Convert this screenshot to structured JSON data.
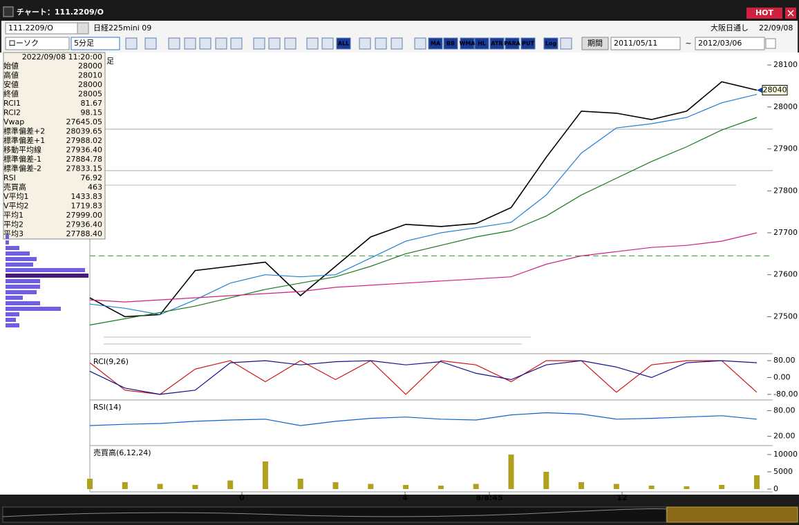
{
  "window": {
    "title": "チャート：111.2209/O",
    "hot": "HOT"
  },
  "toolbar": {
    "symbol": "111.2209/O",
    "name": "日経225mini 09",
    "market": "大阪日通し",
    "date": "22/09/08",
    "chart_type": "ローソク",
    "interval": "5分足",
    "period_button": "期間",
    "from": "2011/05/11",
    "tilde": "~",
    "to": "2012/03/06",
    "icons": [
      "ALL",
      "MA",
      "BB",
      "WMA",
      "HL",
      "ATR",
      "PARA",
      "PUT",
      "Log"
    ]
  },
  "info": {
    "datetime": "2022/09/08 11:20:00",
    "rows": [
      {
        "label": "始値",
        "value": "28000",
        "color": "#000000"
      },
      {
        "label": "高値",
        "value": "28010",
        "color": "#000000"
      },
      {
        "label": "安値",
        "value": "28000",
        "color": "#000000"
      },
      {
        "label": "終値",
        "value": "28005",
        "color": "#000000"
      },
      {
        "label": "RCI1",
        "value": "81.67",
        "color": "#d01010"
      },
      {
        "label": "RCI2",
        "value": "98.15",
        "color": "#101090"
      },
      {
        "label": "Vwap",
        "value": "27645.05",
        "color": "#c010a0"
      },
      {
        "label": "標準偏差+2",
        "value": "28039.65",
        "color": "#707070"
      },
      {
        "label": "標準偏差+1",
        "value": "27988.02",
        "color": "#707070"
      },
      {
        "label": "移動平均線",
        "value": "27936.40",
        "color": "#1010c0"
      },
      {
        "label": "標準偏差-1",
        "value": "27884.78",
        "color": "#707070"
      },
      {
        "label": "標準偏差-2",
        "value": "27833.15",
        "color": "#707070"
      },
      {
        "label": "RSI",
        "value": "76.92",
        "color": "#1060d0"
      },
      {
        "label": "売買高",
        "value": "463",
        "color": "#a09000"
      },
      {
        "label": "V平均1",
        "value": "1433.83",
        "color": "#d01010"
      },
      {
        "label": "V平均2",
        "value": "1719.83",
        "color": "#1060d0"
      },
      {
        "label": "平均1",
        "value": "27999.00",
        "color": "#d01010"
      },
      {
        "label": "平均2",
        "value": "27936.40",
        "color": "#1060d0"
      },
      {
        "label": "平均3",
        "value": "27788.40",
        "color": "#108010"
      }
    ]
  },
  "chart_data": [
    {
      "type": "line",
      "corner_label": "足",
      "xlim": [
        0,
        19
      ],
      "ylim": [
        27415,
        28115
      ],
      "yticks": [
        27500,
        27600,
        27700,
        27800,
        27900,
        28000,
        28100
      ],
      "current_price": 28040,
      "vwap": 27645.05,
      "series": [
        {
          "name": "終値",
          "color": "#000000",
          "values": [
            27545,
            27500,
            27505,
            27610,
            27620,
            27630,
            27550,
            27620,
            27690,
            27720,
            27715,
            27722,
            27760,
            27880,
            27990,
            27985,
            27970,
            27990,
            28060,
            28040
          ]
        },
        {
          "name": "平均2",
          "color": "#1e7fd8",
          "values": [
            27530,
            27520,
            27505,
            27540,
            27580,
            27600,
            27595,
            27600,
            27640,
            27680,
            27700,
            27712,
            27725,
            27790,
            27890,
            27950,
            27960,
            27975,
            28010,
            28030
          ]
        },
        {
          "name": "平均3",
          "color": "#1a7a1a",
          "values": [
            27480,
            27495,
            27510,
            27525,
            27545,
            27565,
            27580,
            27595,
            27620,
            27650,
            27670,
            27690,
            27705,
            27740,
            27790,
            27830,
            27870,
            27905,
            27945,
            27975
          ]
        },
        {
          "name": "Vwap",
          "color": "#d0207f",
          "values": [
            27540,
            27535,
            27540,
            27545,
            27550,
            27555,
            27560,
            27570,
            27575,
            27580,
            27585,
            27590,
            27595,
            27625,
            27645,
            27655,
            27665,
            27670,
            27680,
            27700
          ]
        }
      ],
      "volume_profile": [
        5,
        5,
        20,
        35,
        45,
        40,
        115,
        120,
        50,
        50,
        45,
        25,
        50,
        80,
        20,
        15,
        20
      ]
    },
    {
      "type": "line",
      "title": "RCI(9,26)",
      "xlim": [
        0,
        19
      ],
      "ylim": [
        -100,
        100
      ],
      "yticks": [
        {
          "value": 80,
          "label": "80.00"
        },
        {
          "value": 0,
          "label": "0.00"
        },
        {
          "value": -80,
          "label": "-80.00"
        }
      ],
      "series": [
        {
          "name": "RCI1",
          "color": "#d01010",
          "values": [
            70,
            -60,
            -80,
            40,
            80,
            -20,
            80,
            -10,
            80,
            -80,
            80,
            60,
            -20,
            80,
            80,
            -70,
            60,
            80,
            80,
            -70
          ]
        },
        {
          "name": "RCI2",
          "color": "#101090",
          "values": [
            30,
            -50,
            -80,
            -60,
            70,
            80,
            60,
            75,
            80,
            60,
            75,
            20,
            -10,
            60,
            80,
            50,
            0,
            70,
            80,
            70
          ]
        }
      ]
    },
    {
      "type": "line",
      "title": "RSI(14)",
      "xlim": [
        0,
        19
      ],
      "ylim": [
        0,
        100
      ],
      "yticks": [
        {
          "value": 80,
          "label": "80.00"
        },
        {
          "value": 20,
          "label": "20.00"
        }
      ],
      "series": [
        {
          "name": "RSI",
          "color": "#1060d0",
          "values": [
            45,
            48,
            50,
            55,
            58,
            60,
            45,
            55,
            62,
            65,
            60,
            58,
            70,
            75,
            72,
            60,
            62,
            65,
            68,
            60
          ]
        }
      ]
    },
    {
      "type": "bar",
      "title": "売買高(6,12,24)",
      "xlim": [
        0,
        19
      ],
      "ylim": [
        0,
        12000
      ],
      "yticks": [
        10000,
        5000,
        0
      ],
      "color": "#b0a020",
      "values": [
        3000,
        2000,
        1500,
        1200,
        2500,
        8000,
        3000,
        2000,
        1500,
        1200,
        1000,
        1500,
        10000,
        5000,
        2000,
        1500,
        1000,
        800,
        1200,
        4000
      ],
      "xticks": [
        {
          "value": 4.33,
          "label": "0"
        },
        {
          "value": 8.98,
          "label": "4"
        },
        {
          "value": 11.38,
          "label": "8/8:45"
        },
        {
          "value": 15.16,
          "label": "12"
        }
      ]
    }
  ]
}
